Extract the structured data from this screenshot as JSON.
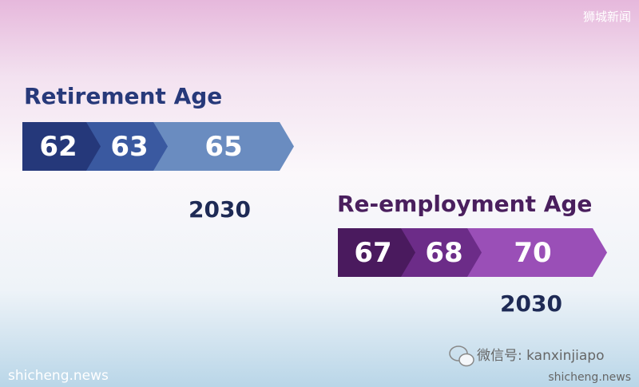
{
  "watermark_top": "狮城新闻",
  "retirement": {
    "title": "Retirement Age",
    "ages": [
      "62",
      "63",
      "65"
    ],
    "year": "2030"
  },
  "reemployment": {
    "title": "Re-employment Age",
    "ages": [
      "67",
      "68",
      "70"
    ],
    "year": "2030"
  },
  "footer": {
    "left": "shicheng.news",
    "wechat": "微信号: kanxinjiapo",
    "right": "shicheng.news"
  }
}
